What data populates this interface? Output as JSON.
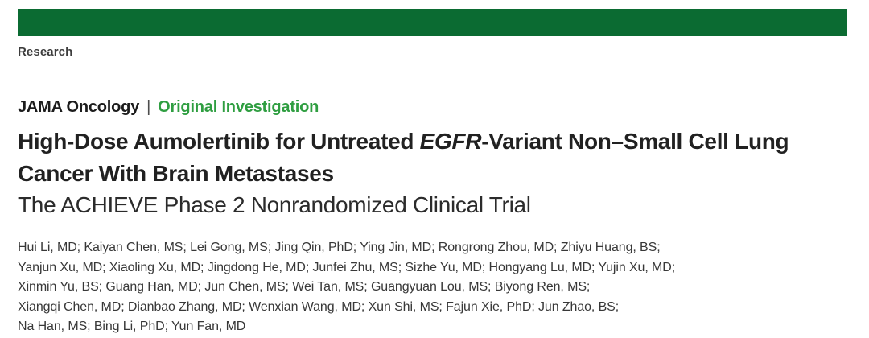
{
  "colors": {
    "masthead_bar_green": "#0b6b32",
    "article_type_green": "#2f9e41",
    "title_text": "#212121",
    "body_text": "#383838"
  },
  "masthead": {
    "section_label": "Research"
  },
  "kicker": {
    "journal": "JAMA Oncology",
    "separator": "|",
    "article_type": "Original Investigation"
  },
  "title": {
    "line1_pre": "High-Dose Aumolertinib for Untreated ",
    "line1_italic": "EGFR",
    "line1_post": "-Variant Non–Small Cell Lung",
    "line2": "Cancer With Brain Metastases",
    "subtitle": "The ACHIEVE Phase 2 Nonrandomized Clinical Trial"
  },
  "authors": {
    "lines": [
      "Hui Li, MD; Kaiyan Chen, MS; Lei Gong, MS; Jing Qin, PhD; Ying Jin, MD; Rongrong Zhou, MD; Zhiyu Huang, BS;",
      "Yanjun Xu, MD; Xiaoling Xu, MD; Jingdong He, MD; Junfei Zhu, MS; Sizhe Yu, MD; Hongyang Lu, MD; Yujin Xu, MD;",
      "Xinmin Yu, BS; Guang Han, MD; Jun Chen, MS; Wei Tan, MS; Guangyuan Lou, MS; Biyong Ren, MS;",
      "Xiangqi Chen, MD; Dianbao Zhang, MD; Wenxian Wang, MD; Xun Shi, MS; Fajun Xie, PhD; Jun Zhao, BS;",
      "Na Han, MS; Bing Li, PhD; Yun Fan, MD"
    ]
  }
}
